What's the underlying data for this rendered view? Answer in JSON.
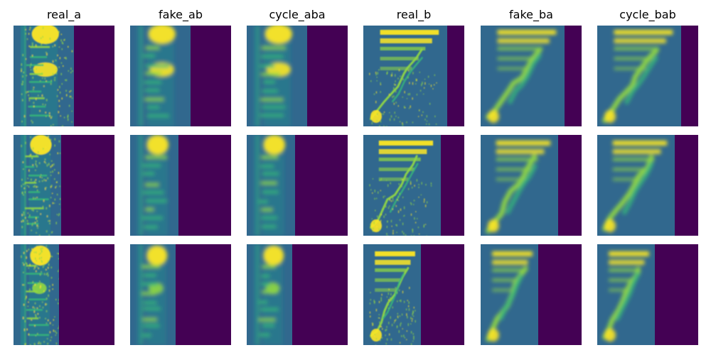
{
  "figure": {
    "columns": [
      {
        "title": "real_a",
        "kind": "a"
      },
      {
        "title": "fake_ab",
        "kind": "ab"
      },
      {
        "title": "cycle_aba",
        "kind": "ab"
      },
      {
        "title": "real_b",
        "kind": "b"
      },
      {
        "title": "fake_ba",
        "kind": "ba"
      },
      {
        "title": "cycle_bab",
        "kind": "ba"
      }
    ],
    "rows": [
      {
        "speech_fraction": [
          0.6,
          0.6,
          0.6,
          0.83,
          0.83,
          0.83
        ]
      },
      {
        "speech_fraction": [
          0.47,
          0.48,
          0.48,
          0.77,
          0.77,
          0.77
        ]
      },
      {
        "speech_fraction": [
          0.45,
          0.45,
          0.45,
          0.57,
          0.57,
          0.57
        ]
      }
    ],
    "colormap": {
      "name": "viridis",
      "padding": "#440154",
      "background": "#31688e",
      "teal": "#21918c",
      "green": "#35b779",
      "lime": "#90d743",
      "bright": "#fde725"
    }
  }
}
